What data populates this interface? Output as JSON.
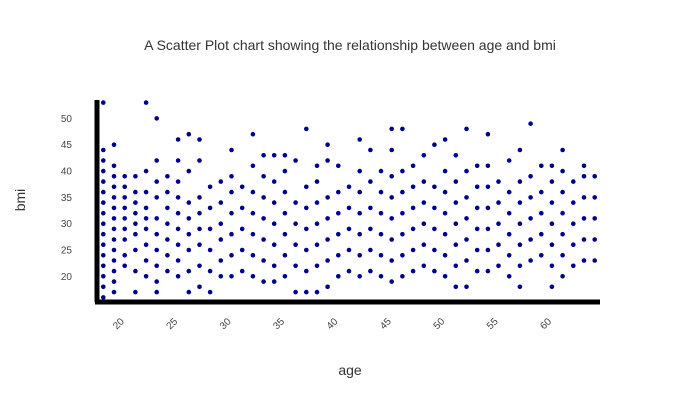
{
  "chart_data": {
    "type": "scatter",
    "title": "A Scatter Plot chart showing the relationship between age and bmi",
    "xlabel": "age",
    "ylabel": "bmi",
    "xlim": [
      17.5,
      64.5
    ],
    "ylim": [
      15.5,
      53.5
    ],
    "x_ticks": [
      20,
      25,
      30,
      35,
      40,
      45,
      50,
      55,
      60
    ],
    "y_ticks": [
      20,
      25,
      30,
      35,
      40,
      45,
      50
    ],
    "grid": false,
    "legend": "none",
    "marker_color": "#00008b",
    "axis_color": "#000000",
    "x_range": [
      18,
      64
    ],
    "series": [
      {
        "x_values": "integer ages 18 to 64",
        "points": [
          [
            18,
            16
          ],
          [
            18,
            18
          ],
          [
            18,
            20
          ],
          [
            18,
            22
          ],
          [
            18,
            24
          ],
          [
            18,
            26
          ],
          [
            18,
            28
          ],
          [
            18,
            30
          ],
          [
            18,
            32
          ],
          [
            18,
            34
          ],
          [
            18,
            36
          ],
          [
            18,
            38
          ],
          [
            18,
            40
          ],
          [
            18,
            42
          ],
          [
            18,
            44
          ],
          [
            18,
            53
          ],
          [
            19,
            17
          ],
          [
            19,
            19
          ],
          [
            19,
            21
          ],
          [
            19,
            23
          ],
          [
            19,
            25
          ],
          [
            19,
            27
          ],
          [
            19,
            29
          ],
          [
            19,
            31
          ],
          [
            19,
            33
          ],
          [
            19,
            35
          ],
          [
            19,
            37
          ],
          [
            19,
            39
          ],
          [
            19,
            41
          ],
          [
            19,
            45
          ],
          [
            20,
            22
          ],
          [
            20,
            24
          ],
          [
            20,
            27
          ],
          [
            20,
            29
          ],
          [
            20,
            31
          ],
          [
            20,
            33
          ],
          [
            20,
            35
          ],
          [
            20,
            37
          ],
          [
            20,
            39
          ],
          [
            21,
            17
          ],
          [
            21,
            21
          ],
          [
            21,
            25
          ],
          [
            21,
            28
          ],
          [
            21,
            30
          ],
          [
            21,
            32
          ],
          [
            21,
            34
          ],
          [
            21,
            36
          ],
          [
            21,
            39
          ],
          [
            22,
            20
          ],
          [
            22,
            23
          ],
          [
            22,
            26
          ],
          [
            22,
            29
          ],
          [
            22,
            31
          ],
          [
            22,
            33
          ],
          [
            22,
            36
          ],
          [
            22,
            40
          ],
          [
            22,
            53
          ],
          [
            23,
            17
          ],
          [
            23,
            19
          ],
          [
            23,
            22
          ],
          [
            23,
            25
          ],
          [
            23,
            28
          ],
          [
            23,
            31
          ],
          [
            23,
            35
          ],
          [
            23,
            38
          ],
          [
            23,
            42
          ],
          [
            23,
            50
          ],
          [
            24,
            21
          ],
          [
            24,
            24
          ],
          [
            24,
            27
          ],
          [
            24,
            30
          ],
          [
            24,
            33
          ],
          [
            24,
            36
          ],
          [
            24,
            39
          ],
          [
            25,
            20
          ],
          [
            25,
            23
          ],
          [
            25,
            26
          ],
          [
            25,
            29
          ],
          [
            25,
            32
          ],
          [
            25,
            35
          ],
          [
            25,
            38
          ],
          [
            25,
            42
          ],
          [
            25,
            46
          ],
          [
            26,
            17
          ],
          [
            26,
            21
          ],
          [
            26,
            25
          ],
          [
            26,
            28
          ],
          [
            26,
            31
          ],
          [
            26,
            34
          ],
          [
            26,
            40
          ],
          [
            26,
            47
          ],
          [
            27,
            18
          ],
          [
            27,
            22
          ],
          [
            27,
            26
          ],
          [
            27,
            29
          ],
          [
            27,
            32
          ],
          [
            27,
            35
          ],
          [
            27,
            42
          ],
          [
            27,
            46
          ],
          [
            28,
            17
          ],
          [
            28,
            21
          ],
          [
            28,
            25
          ],
          [
            28,
            29
          ],
          [
            28,
            33
          ],
          [
            28,
            37
          ],
          [
            29,
            20
          ],
          [
            29,
            23
          ],
          [
            29,
            27
          ],
          [
            29,
            30
          ],
          [
            29,
            34
          ],
          [
            29,
            38
          ],
          [
            30,
            20
          ],
          [
            30,
            24
          ],
          [
            30,
            28
          ],
          [
            30,
            32
          ],
          [
            30,
            36
          ],
          [
            30,
            39
          ],
          [
            30,
            44
          ],
          [
            31,
            21
          ],
          [
            31,
            25
          ],
          [
            31,
            29
          ],
          [
            31,
            33
          ],
          [
            31,
            37
          ],
          [
            32,
            20
          ],
          [
            32,
            24
          ],
          [
            32,
            28
          ],
          [
            32,
            32
          ],
          [
            32,
            36
          ],
          [
            32,
            41
          ],
          [
            32,
            47
          ],
          [
            33,
            19
          ],
          [
            33,
            23
          ],
          [
            33,
            27
          ],
          [
            33,
            31
          ],
          [
            33,
            35
          ],
          [
            33,
            39
          ],
          [
            33,
            43
          ],
          [
            34,
            19
          ],
          [
            34,
            22
          ],
          [
            34,
            26
          ],
          [
            34,
            30
          ],
          [
            34,
            34
          ],
          [
            34,
            38
          ],
          [
            34,
            43
          ],
          [
            35,
            20
          ],
          [
            35,
            24
          ],
          [
            35,
            28
          ],
          [
            35,
            32
          ],
          [
            35,
            36
          ],
          [
            35,
            40
          ],
          [
            35,
            43
          ],
          [
            36,
            17
          ],
          [
            36,
            22
          ],
          [
            36,
            26
          ],
          [
            36,
            30
          ],
          [
            36,
            34
          ],
          [
            36,
            42
          ],
          [
            37,
            17
          ],
          [
            37,
            21
          ],
          [
            37,
            25
          ],
          [
            37,
            29
          ],
          [
            37,
            33
          ],
          [
            37,
            37
          ],
          [
            37,
            48
          ],
          [
            38,
            17
          ],
          [
            38,
            22
          ],
          [
            38,
            26
          ],
          [
            38,
            30
          ],
          [
            38,
            34
          ],
          [
            38,
            38
          ],
          [
            38,
            41
          ],
          [
            39,
            18
          ],
          [
            39,
            23
          ],
          [
            39,
            27
          ],
          [
            39,
            31
          ],
          [
            39,
            35
          ],
          [
            39,
            42
          ],
          [
            39,
            45
          ],
          [
            40,
            20
          ],
          [
            40,
            24
          ],
          [
            40,
            28
          ],
          [
            40,
            32
          ],
          [
            40,
            36
          ],
          [
            40,
            41
          ],
          [
            41,
            21
          ],
          [
            41,
            25
          ],
          [
            41,
            29
          ],
          [
            41,
            33
          ],
          [
            41,
            37
          ],
          [
            42,
            20
          ],
          [
            42,
            24
          ],
          [
            42,
            28
          ],
          [
            42,
            32
          ],
          [
            42,
            36
          ],
          [
            42,
            40
          ],
          [
            42,
            46
          ],
          [
            43,
            21
          ],
          [
            43,
            25
          ],
          [
            43,
            29
          ],
          [
            43,
            33
          ],
          [
            43,
            38
          ],
          [
            43,
            44
          ],
          [
            44,
            20
          ],
          [
            44,
            24
          ],
          [
            44,
            28
          ],
          [
            44,
            32
          ],
          [
            44,
            36
          ],
          [
            44,
            40
          ],
          [
            45,
            19
          ],
          [
            45,
            23
          ],
          [
            45,
            27
          ],
          [
            45,
            31
          ],
          [
            45,
            35
          ],
          [
            45,
            39
          ],
          [
            45,
            44
          ],
          [
            45,
            48
          ],
          [
            46,
            20
          ],
          [
            46,
            24
          ],
          [
            46,
            28
          ],
          [
            46,
            32
          ],
          [
            46,
            36
          ],
          [
            46,
            40
          ],
          [
            46,
            48
          ],
          [
            47,
            21
          ],
          [
            47,
            25
          ],
          [
            47,
            29
          ],
          [
            47,
            33
          ],
          [
            47,
            37
          ],
          [
            47,
            41
          ],
          [
            48,
            22
          ],
          [
            48,
            26
          ],
          [
            48,
            30
          ],
          [
            48,
            34
          ],
          [
            48,
            38
          ],
          [
            48,
            43
          ],
          [
            49,
            21
          ],
          [
            49,
            25
          ],
          [
            49,
            29
          ],
          [
            49,
            33
          ],
          [
            49,
            37
          ],
          [
            49,
            45
          ],
          [
            50,
            20
          ],
          [
            50,
            24
          ],
          [
            50,
            28
          ],
          [
            50,
            32
          ],
          [
            50,
            36
          ],
          [
            50,
            40
          ],
          [
            50,
            46
          ],
          [
            51,
            18
          ],
          [
            51,
            22
          ],
          [
            51,
            26
          ],
          [
            51,
            30
          ],
          [
            51,
            34
          ],
          [
            51,
            38
          ],
          [
            51,
            43
          ],
          [
            52,
            18
          ],
          [
            52,
            23
          ],
          [
            52,
            27
          ],
          [
            52,
            31
          ],
          [
            52,
            35
          ],
          [
            52,
            40
          ],
          [
            52,
            48
          ],
          [
            53,
            21
          ],
          [
            53,
            25
          ],
          [
            53,
            29
          ],
          [
            53,
            33
          ],
          [
            53,
            37
          ],
          [
            53,
            41
          ],
          [
            54,
            21
          ],
          [
            54,
            25
          ],
          [
            54,
            29
          ],
          [
            54,
            33
          ],
          [
            54,
            37
          ],
          [
            54,
            41
          ],
          [
            54,
            47
          ],
          [
            55,
            22
          ],
          [
            55,
            26
          ],
          [
            55,
            30
          ],
          [
            55,
            34
          ],
          [
            55,
            38
          ],
          [
            56,
            20
          ],
          [
            56,
            24
          ],
          [
            56,
            28
          ],
          [
            56,
            32
          ],
          [
            56,
            36
          ],
          [
            56,
            42
          ],
          [
            57,
            18
          ],
          [
            57,
            22
          ],
          [
            57,
            26
          ],
          [
            57,
            30
          ],
          [
            57,
            34
          ],
          [
            57,
            38
          ],
          [
            57,
            44
          ],
          [
            58,
            23
          ],
          [
            58,
            27
          ],
          [
            58,
            31
          ],
          [
            58,
            35
          ],
          [
            58,
            39
          ],
          [
            58,
            49
          ],
          [
            59,
            24
          ],
          [
            59,
            28
          ],
          [
            59,
            32
          ],
          [
            59,
            36
          ],
          [
            59,
            41
          ],
          [
            60,
            18
          ],
          [
            60,
            22
          ],
          [
            60,
            26
          ],
          [
            60,
            30
          ],
          [
            60,
            34
          ],
          [
            60,
            38
          ],
          [
            60,
            41
          ],
          [
            61,
            20
          ],
          [
            61,
            24
          ],
          [
            61,
            28
          ],
          [
            61,
            32
          ],
          [
            61,
            36
          ],
          [
            61,
            40
          ],
          [
            61,
            44
          ],
          [
            62,
            22
          ],
          [
            62,
            26
          ],
          [
            62,
            30
          ],
          [
            62,
            34
          ],
          [
            62,
            38
          ],
          [
            63,
            23
          ],
          [
            63,
            27
          ],
          [
            63,
            31
          ],
          [
            63,
            35
          ],
          [
            63,
            39
          ],
          [
            63,
            41
          ],
          [
            64,
            23
          ],
          [
            64,
            27
          ],
          [
            64,
            31
          ],
          [
            64,
            35
          ],
          [
            64,
            39
          ]
        ]
      }
    ]
  }
}
